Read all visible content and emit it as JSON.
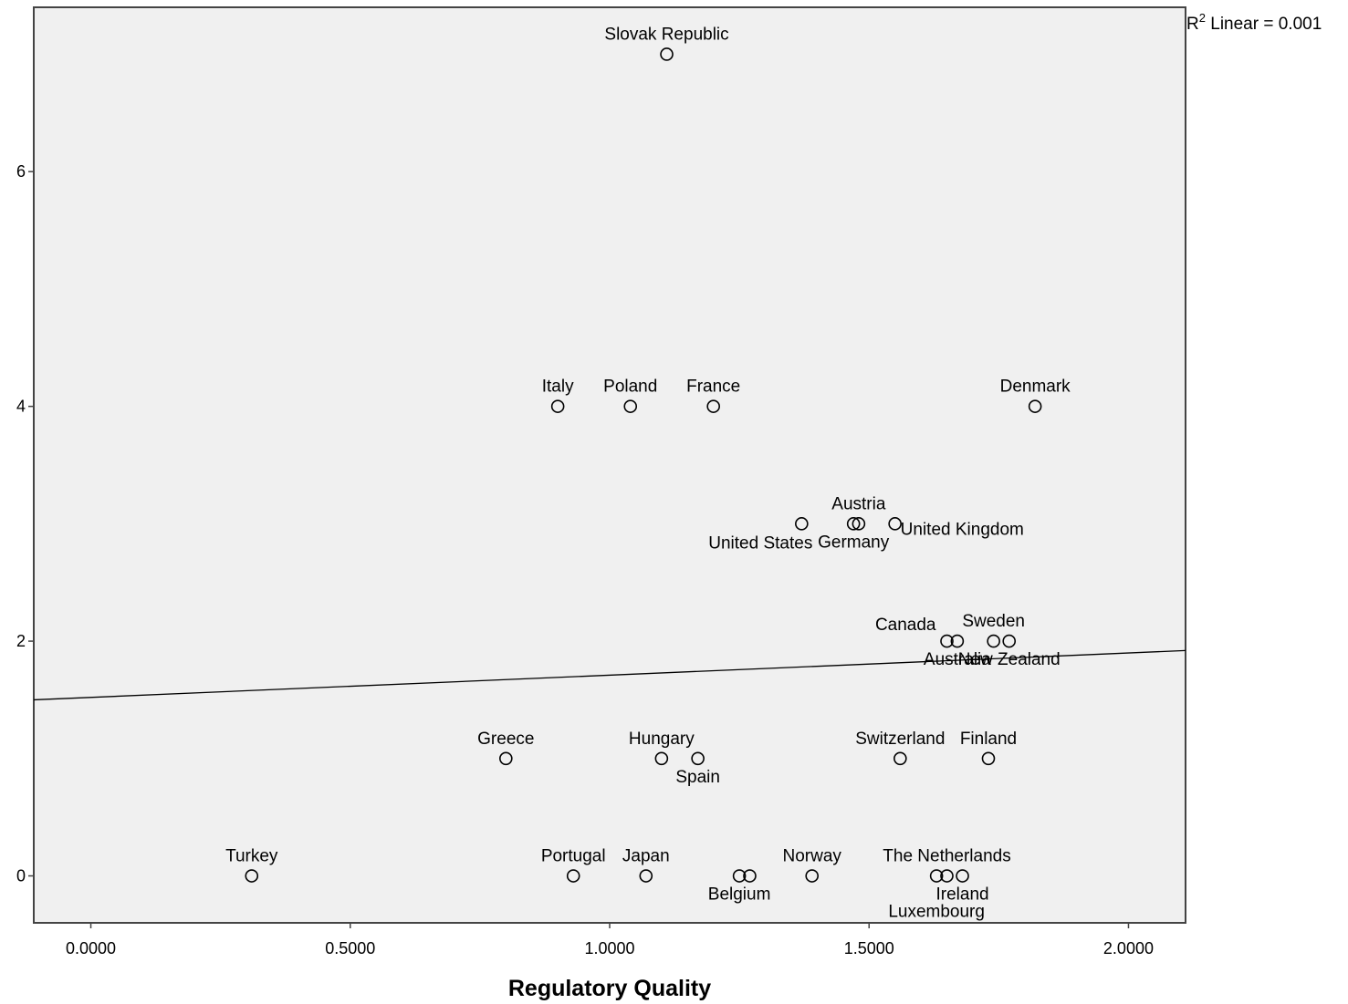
{
  "chart_data": {
    "type": "scatter",
    "title": "",
    "xlabel": "Regulatory Quality",
    "ylabel": "",
    "xlim": [
      -0.11,
      2.11
    ],
    "ylim": [
      -0.4,
      7.4
    ],
    "x_ticks": [
      0.0,
      0.5,
      1.0,
      1.5,
      2.0
    ],
    "x_tick_labels": [
      "0.0000",
      "0.5000",
      "1.0000",
      "1.5000",
      "2.0000"
    ],
    "y_ticks": [
      0,
      2,
      4,
      6
    ],
    "y_tick_labels": [
      "0",
      "2",
      "4",
      "6"
    ],
    "grid": false,
    "fit_line": {
      "label": "R",
      "label_sup": "2",
      "label_rest": " Linear = 0.001",
      "x": [
        -0.11,
        2.11
      ],
      "y": [
        1.5,
        1.92
      ]
    },
    "points": [
      {
        "name": "Slovak Republic",
        "x": 1.11,
        "y": 7,
        "label_pos": "above"
      },
      {
        "name": "Italy",
        "x": 0.9,
        "y": 4,
        "label_pos": "above"
      },
      {
        "name": "Poland",
        "x": 1.04,
        "y": 4,
        "label_pos": "above"
      },
      {
        "name": "France",
        "x": 1.2,
        "y": 4,
        "label_pos": "above"
      },
      {
        "name": "Denmark",
        "x": 1.82,
        "y": 4,
        "label_pos": "above"
      },
      {
        "name": "Austria",
        "x": 1.48,
        "y": 3,
        "label_pos": "above"
      },
      {
        "name": "United States",
        "x": 1.37,
        "y": 3,
        "label_pos": "below-left"
      },
      {
        "name": "Germany",
        "x": 1.47,
        "y": 3,
        "label_pos": "below"
      },
      {
        "name": "United Kingdom",
        "x": 1.55,
        "y": 3,
        "label_pos": "right"
      },
      {
        "name": "Canada",
        "x": 1.65,
        "y": 2,
        "label_pos": "left"
      },
      {
        "name": "Australia",
        "x": 1.67,
        "y": 2,
        "label_pos": "below"
      },
      {
        "name": "Sweden",
        "x": 1.74,
        "y": 2,
        "label_pos": "above"
      },
      {
        "name": "New Zealand",
        "x": 1.77,
        "y": 2,
        "label_pos": "below"
      },
      {
        "name": "Greece",
        "x": 0.8,
        "y": 1,
        "label_pos": "above"
      },
      {
        "name": "Hungary",
        "x": 1.1,
        "y": 1,
        "label_pos": "above"
      },
      {
        "name": "Spain",
        "x": 1.17,
        "y": 1,
        "label_pos": "below"
      },
      {
        "name": "Switzerland",
        "x": 1.56,
        "y": 1,
        "label_pos": "above"
      },
      {
        "name": "Finland",
        "x": 1.73,
        "y": 1,
        "label_pos": "above"
      },
      {
        "name": "Turkey",
        "x": 0.31,
        "y": 0,
        "label_pos": "above"
      },
      {
        "name": "Portugal",
        "x": 0.93,
        "y": 0,
        "label_pos": "above"
      },
      {
        "name": "Japan",
        "x": 1.07,
        "y": 0,
        "label_pos": "above"
      },
      {
        "name": "Belgium",
        "x": 1.25,
        "y": 0,
        "label_pos": "below"
      },
      {
        "name": "",
        "x": 1.27,
        "y": 0,
        "label_pos": "none"
      },
      {
        "name": "Norway",
        "x": 1.39,
        "y": 0,
        "label_pos": "above"
      },
      {
        "name": "Luxembourg",
        "x": 1.63,
        "y": 0,
        "label_pos": "below-far"
      },
      {
        "name": "The Netherlands",
        "x": 1.65,
        "y": 0,
        "label_pos": "above"
      },
      {
        "name": "Ireland",
        "x": 1.68,
        "y": 0,
        "label_pos": "below"
      }
    ]
  }
}
